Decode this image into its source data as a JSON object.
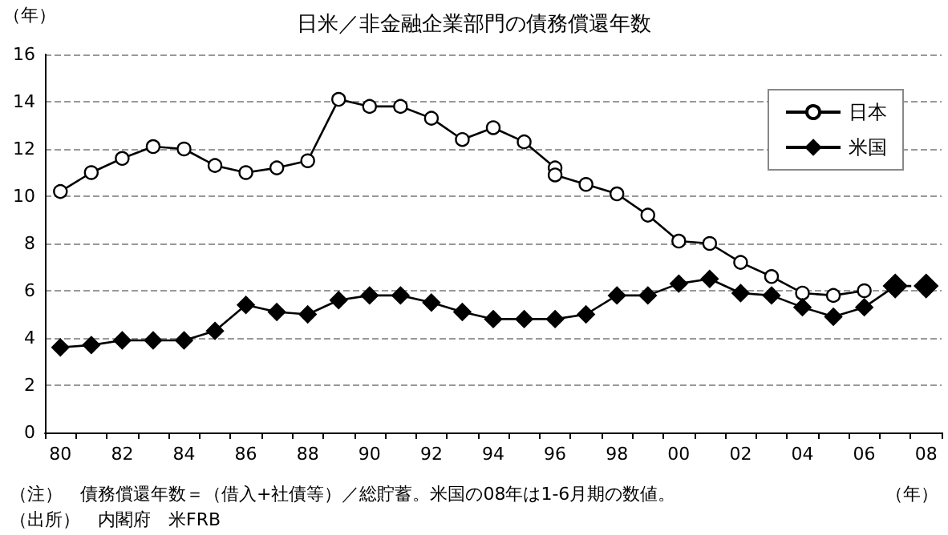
{
  "chart_data": {
    "type": "line",
    "title": "日米／非金融企業部門の債務償還年数",
    "ylabel": "（年）",
    "xlabel": "（年）",
    "categories": [
      "80",
      null,
      "82",
      null,
      "84",
      null,
      "86",
      null,
      "88",
      null,
      "90",
      null,
      "92",
      null,
      "94",
      null,
      "96",
      null,
      "98",
      null,
      "00",
      null,
      "02",
      null,
      "04",
      null,
      "06",
      null,
      "08"
    ],
    "series": [
      {
        "name": "日本",
        "color": "#000000",
        "marker": "circle",
        "line_style": "solid",
        "values": [
          10.2,
          11.0,
          11.6,
          12.1,
          12.0,
          11.3,
          11.0,
          11.2,
          11.5,
          14.1,
          13.8,
          13.8,
          13.3,
          12.4,
          12.9,
          12.3,
          11.2,
          null,
          null,
          null,
          null,
          null,
          null,
          null,
          null,
          null,
          null,
          null,
          null
        ]
      },
      {
        "color": "#000000",
        "marker": "circle",
        "line_style": "solid",
        "values": [
          null,
          null,
          null,
          null,
          null,
          null,
          null,
          null,
          null,
          null,
          null,
          null,
          null,
          null,
          null,
          null,
          10.9,
          10.5,
          10.1,
          9.2,
          8.1,
          8.0,
          7.2,
          6.6,
          5.9,
          5.8,
          6.0,
          null,
          null
        ]
      },
      {
        "name": "米国",
        "color": "#000000",
        "marker": "diamond",
        "line_style": "solid",
        "values": [
          3.6,
          3.7,
          3.9,
          3.9,
          3.9,
          4.3,
          5.4,
          5.1,
          5.0,
          5.6,
          5.8,
          5.8,
          5.5,
          5.1,
          4.8,
          4.8,
          4.8,
          5.0,
          5.8,
          5.8,
          6.3,
          6.5,
          5.9,
          5.8,
          5.3,
          4.9,
          5.3,
          6.2,
          null
        ]
      },
      {
        "color": "#000000",
        "marker": "diamond",
        "line_style": "dotted",
        "values": [
          null,
          null,
          null,
          null,
          null,
          null,
          null,
          null,
          null,
          null,
          null,
          null,
          null,
          null,
          null,
          null,
          null,
          null,
          null,
          null,
          null,
          null,
          null,
          null,
          null,
          null,
          null,
          6.2,
          6.2
        ]
      }
    ],
    "ylim": [
      0,
      16
    ],
    "yticks": [
      0,
      2,
      4,
      6,
      8,
      10,
      12,
      14,
      16
    ],
    "grid": "y",
    "legend": "top right",
    "annotations": [
      "（注）　債務償還年数＝（借入+社債等）／総貯蓄。米国の08年は1-6月期の数値。",
      "（出所）　内閣府　米FRB"
    ]
  }
}
